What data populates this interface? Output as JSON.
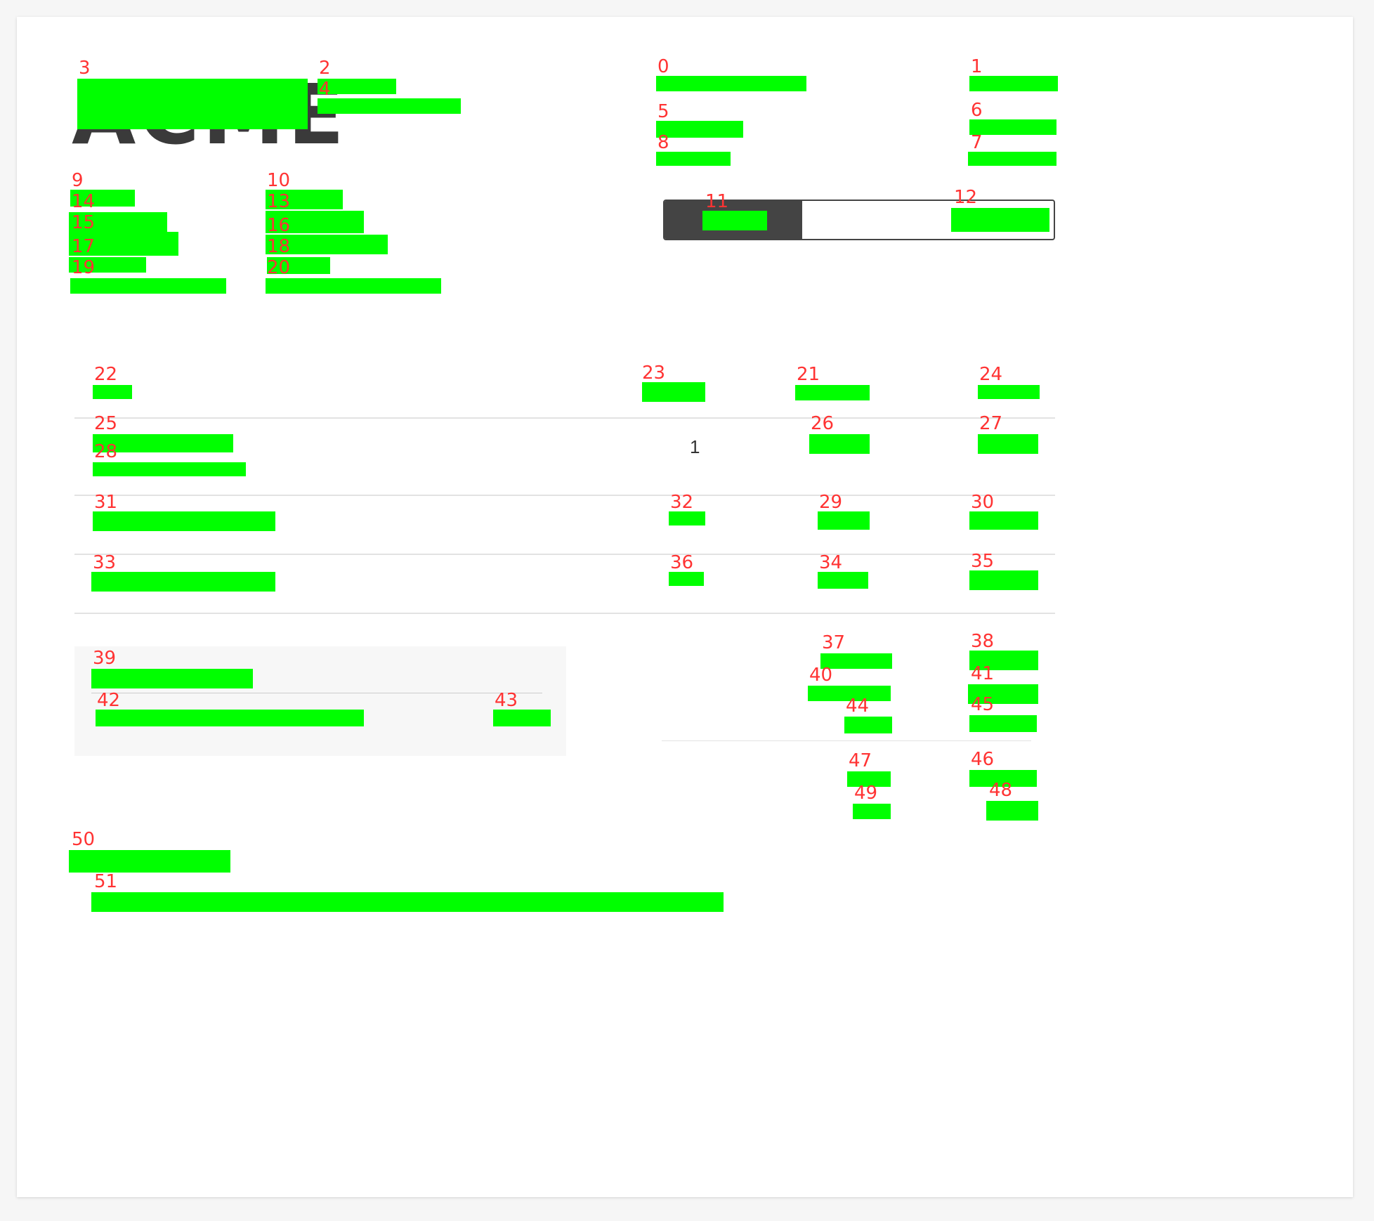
{
  "labels": {
    "l0": "0",
    "l1": "1",
    "l2": "2",
    "l3": "3",
    "l4": "4",
    "l5": "5",
    "l6": "6",
    "l7": "7",
    "l8": "8",
    "l9": "9",
    "l10": "10",
    "l11": "11",
    "l12": "12",
    "l13": "13",
    "l14": "14",
    "l15": "15",
    "l16": "16",
    "l17": "17",
    "l18": "18",
    "l19": "19",
    "l20": "20",
    "l21": "21",
    "l22": "22",
    "l23": "23",
    "l24": "24",
    "l25": "25",
    "l26": "26",
    "l27": "27",
    "l28": "28",
    "l29": "29",
    "l30": "30",
    "l31": "31",
    "l32": "32",
    "l33": "33",
    "l34": "34",
    "l35": "35",
    "l36": "36",
    "l37": "37",
    "l38": "38",
    "l39": "39",
    "l40": "40",
    "l41": "41",
    "l42": "42",
    "l43": "43",
    "l44": "44",
    "l45": "45",
    "l46": "46",
    "l47": "47",
    "l48": "48",
    "l49": "49",
    "l50": "50",
    "l51": "51"
  },
  "logo": {
    "text": "ACME"
  },
  "items": {
    "row1_quantity": "1"
  },
  "colors": {
    "mask": "#00ff00",
    "label": "#ff3333",
    "toggle_dark": "#444444",
    "rule": "#e2e2e2",
    "summary_bg": "#f7f7f7"
  }
}
